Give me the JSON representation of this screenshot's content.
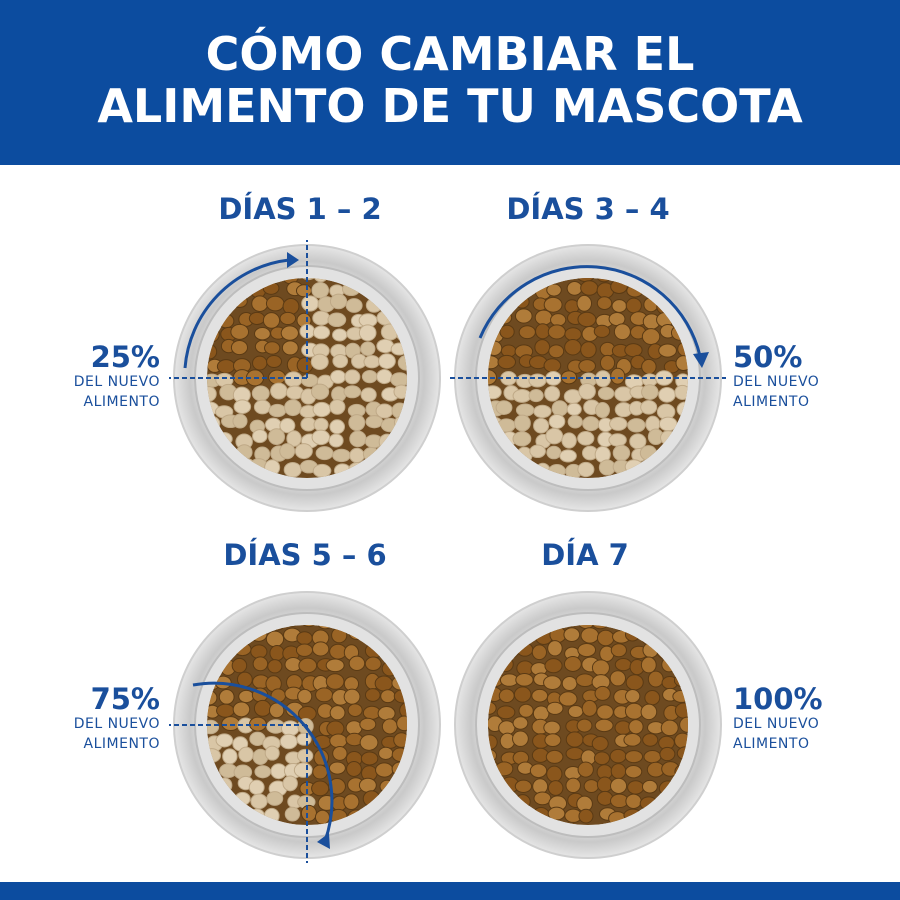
{
  "header": {
    "title_line1": "CÓMO CAMBIAR EL",
    "title_line2": "ALIMENTO DE TU MASCOTA"
  },
  "colors": {
    "brand_blue": "#0c4c9f",
    "text_blue": "#1a4f9c",
    "new_food": "#8c5a20",
    "old_food": "#d9c6a6"
  },
  "steps": [
    {
      "title": "DÍAS 1 – 2",
      "percent": "25%",
      "line1": "DEL NUEVO",
      "line2": "ALIMENTO",
      "new_food_fraction": 0.25
    },
    {
      "title": "DÍAS 3 – 4",
      "percent": "50%",
      "line1": "DEL NUEVO",
      "line2": "ALIMENTO",
      "new_food_fraction": 0.5
    },
    {
      "title": "DÍAS 5 – 6",
      "percent": "75%",
      "line1": "DEL NUEVO",
      "line2": "ALIMENTO",
      "new_food_fraction": 0.75
    },
    {
      "title": "DÍA 7",
      "percent": "100%",
      "line1": "DEL NUEVO",
      "line2": "ALIMENTO",
      "new_food_fraction": 1.0
    }
  ]
}
